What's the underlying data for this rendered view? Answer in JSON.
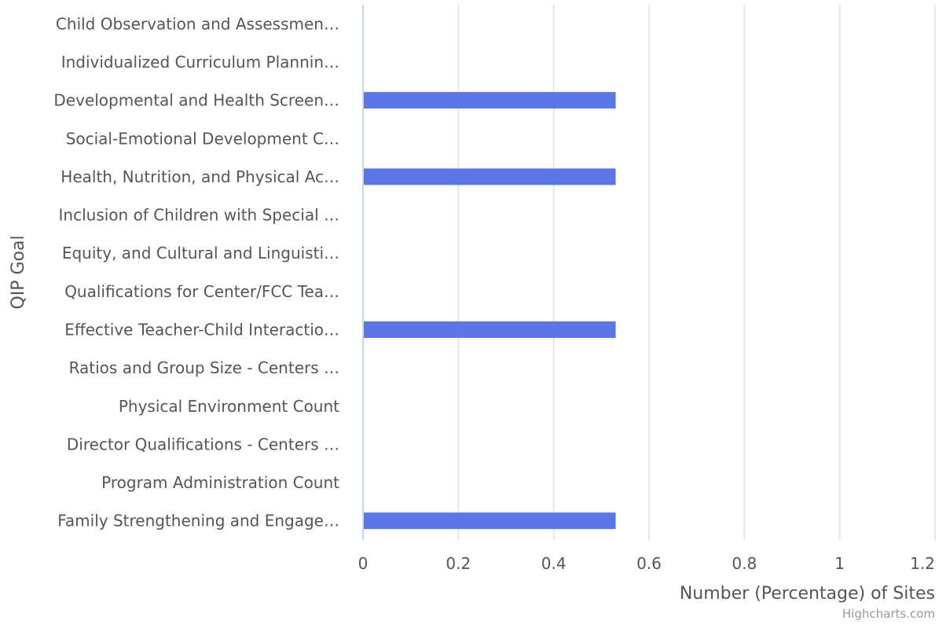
{
  "chart_data": {
    "type": "bar",
    "orientation": "horizontal",
    "categories": [
      "Child Observation and Assessmen…",
      "Individualized Curriculum Plannin…",
      "Developmental and Health Screen…",
      "Social-Emotional Development C…",
      "Health, Nutrition, and Physical Ac…",
      "Inclusion of Children with Special …",
      "Equity, and Cultural and Linguisti…",
      "Qualifications for Center/FCC Tea…",
      "Effective Teacher-Child Interactio…",
      "Ratios and Group Size - Centers …",
      "Physical Environment Count",
      "Director Qualifications - Centers …",
      "Program Administration Count",
      "Family Strengthening and Engage…"
    ],
    "values": [
      0,
      0,
      0.53,
      0,
      0.53,
      0,
      0,
      0,
      0.53,
      0,
      0,
      0,
      0,
      0.53
    ],
    "xlabel": "Number (Percentage) of Sites",
    "ylabel": "QIP Goal",
    "xlim": [
      0,
      1.2
    ],
    "ticks": [
      0,
      0.2,
      0.4,
      0.6,
      0.8,
      1,
      1.2
    ],
    "tick_labels": [
      "0",
      "0.2",
      "0.4",
      "0.6",
      "0.8",
      "1",
      "1.2"
    ],
    "grid": true,
    "legend": "none",
    "bar_color": "#5b76e8",
    "credit": "Highcharts.com"
  }
}
